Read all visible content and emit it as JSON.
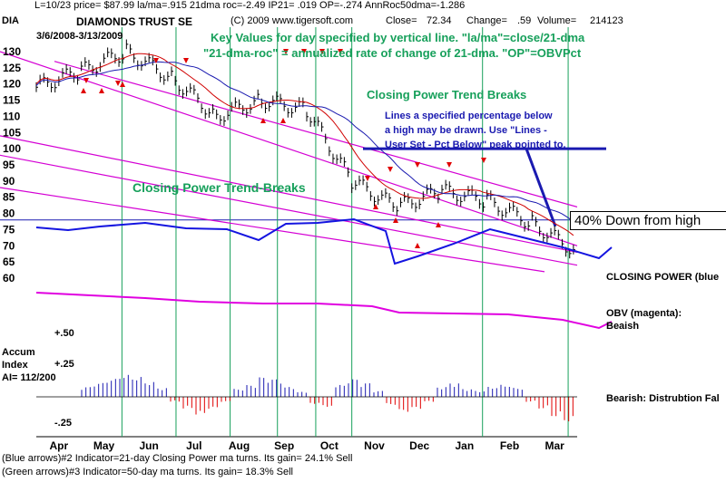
{
  "header": {
    "line1": "L=10/23   price= $87.99  la/ma=.915 21dma roc=-2.49 IP21= .019 OP=-.274 AnnRoc50dma=-1.286",
    "symbol": "DIA",
    "name": "DIAMONDS TRUST SE",
    "copyright": "(C) 2009 www.tigersoft.com",
    "close_label": "Close=",
    "close_value": "72.34",
    "change_label": "Change=",
    "change_value": ".59",
    "volume_label": "Volume=",
    "volume_value": "214123",
    "date_range": "3/6/2008-3/13/2009"
  },
  "annotations": {
    "key_values_1": "Key Values for day specified by vertical line.  \"la/ma\"=close/21-dma",
    "key_values_2": "\"21-dma-roc\" = annualized rate of change of 21-dma.  \"OP\"=OBVPct",
    "cp_trend_breaks_top": "Closing Power Trend Breaks",
    "cp_trend_breaks_left": "Closing Power Trend-Breaks",
    "lines_note_1": "Lines a specified percentage below",
    "lines_note_2": "a high may be drawn.  Use \"Lines -",
    "lines_note_3": "User Set - Pct Below\" peak pointed to.",
    "box_40pct": "40% Down from high",
    "closing_power": "CLOSING POWER (blue",
    "obv_1": "OBV (magenta):",
    "obv_2": "Beaish",
    "bearish": "Bearish: Distrubtion Fal",
    "accum_1": "Accum",
    "accum_2": "Index",
    "accum_3": "AI= 112/200",
    "plus50": "+.50",
    "plus25": "+.25",
    "minus25": "-.25"
  },
  "footer": {
    "line1": "(Blue arrows)#2 Indicator=21-day Closing Power ma turns. Its gain= 24.1% Sell",
    "line2": "(Green arrows)#3 Indicator=50-day ma turns.  Its gain= 18.3% Sell"
  },
  "chart_data": {
    "type": "line",
    "title": "DIAMONDS TRUST SE",
    "y_ticks": [
      "130",
      "125",
      "120",
      "115",
      "110",
      "105",
      "100",
      "95",
      "90",
      "85",
      "80",
      "75",
      "70",
      "65",
      "60"
    ],
    "ylim": [
      60,
      130
    ],
    "x_months": [
      "Apr",
      "May",
      "Jun",
      "Jul",
      "Aug",
      "Sep",
      "Oct",
      "Nov",
      "Dec",
      "Jan",
      "Feb",
      "Mar"
    ],
    "series": [
      {
        "name": "",
        "color": "#000000",
        "x": [
          "2008-03",
          "2008-04",
          "2008-05",
          "2008-06",
          "2008-07",
          "2008-08",
          "2008-09",
          "2008-10",
          "2008-11",
          "2008-12",
          "2009-01",
          "2009-02",
          "2009-03"
        ],
        "values": [
          119,
          124,
          130,
          122,
          110,
          115,
          112,
          90,
          82,
          87,
          84,
          77,
          68
        ]
      }
    ],
    "closing_power": [
      [
        0,
        16
      ],
      [
        35,
        19
      ],
      [
        70,
        15
      ],
      [
        120,
        11
      ],
      [
        165,
        17
      ],
      [
        210,
        18
      ],
      [
        245,
        30
      ],
      [
        275,
        12
      ],
      [
        310,
        11
      ],
      [
        350,
        7
      ],
      [
        385,
        20
      ],
      [
        395,
        56
      ],
      [
        420,
        48
      ],
      [
        460,
        34
      ],
      [
        500,
        18
      ],
      [
        540,
        28
      ],
      [
        580,
        38
      ],
      [
        620,
        50
      ],
      [
        634,
        38
      ]
    ],
    "obv": [
      [
        0,
        18
      ],
      [
        60,
        21
      ],
      [
        120,
        24
      ],
      [
        180,
        28
      ],
      [
        250,
        30
      ],
      [
        310,
        30
      ],
      [
        370,
        33
      ],
      [
        400,
        40
      ],
      [
        460,
        41
      ],
      [
        520,
        42
      ],
      [
        580,
        48
      ],
      [
        620,
        57
      ],
      [
        634,
        50
      ]
    ],
    "vertical_lines_month_index": [
      1.9,
      3.1,
      4.3,
      5.35,
      6.2,
      7.0,
      9.9,
      11.8
    ],
    "accum_index_range": [
      -0.25,
      0.5
    ],
    "accum_bars": [
      0.1,
      0.14,
      0.18,
      0.22,
      0.2,
      0.15,
      0.09,
      -0.05,
      -0.12,
      -0.18,
      -0.12,
      -0.05,
      0.08,
      0.12,
      0.2,
      0.18,
      0.1,
      0.05,
      -0.07,
      -0.1,
      0.12,
      0.18,
      0.14,
      0.06,
      -0.08,
      -0.15,
      -0.12,
      -0.05,
      0.1,
      0.14,
      0.08,
      0.06,
      0.1,
      0.12,
      0.09,
      -0.05,
      -0.12,
      -0.2,
      -0.25
    ]
  }
}
